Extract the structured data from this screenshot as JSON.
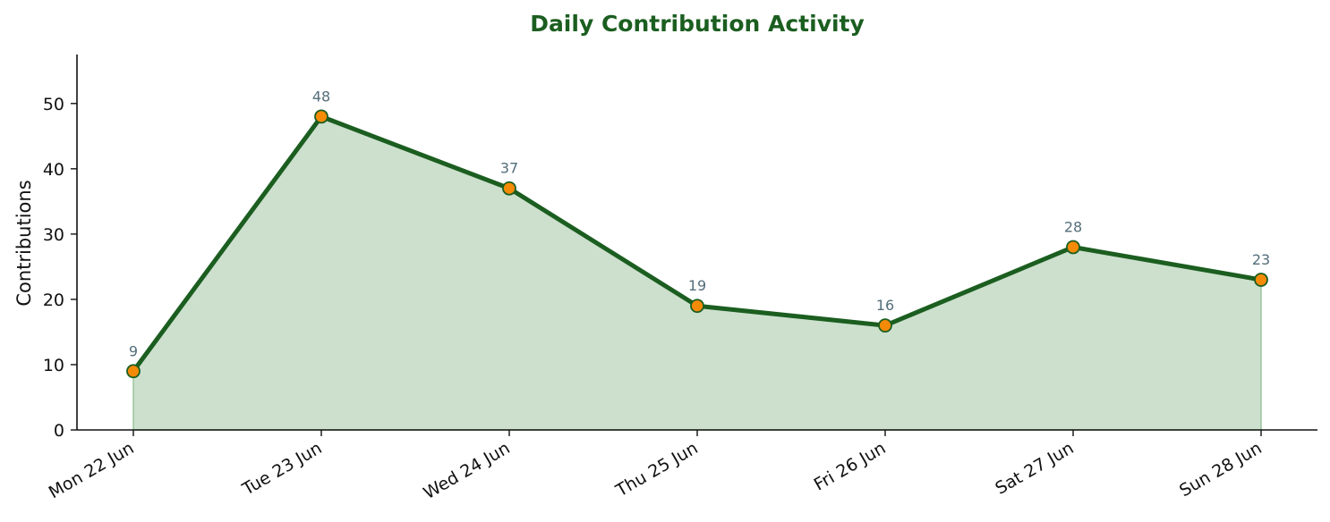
{
  "chart_data": {
    "type": "area",
    "title": "Daily Contribution Activity",
    "xlabel": "",
    "ylabel": "Contributions",
    "categories": [
      "Mon 22 Jun",
      "Tue 23 Jun",
      "Wed 24 Jun",
      "Thu 25 Jun",
      "Fri 26 Jun",
      "Sat 27 Jun",
      "Sun 28 Jun"
    ],
    "values": [
      9,
      48,
      37,
      19,
      16,
      28,
      23
    ],
    "data_labels": [
      "9",
      "48",
      "37",
      "19",
      "16",
      "28",
      "23"
    ],
    "ylim": [
      0,
      57.5
    ],
    "yticks": [
      0,
      10,
      20,
      30,
      40,
      50
    ],
    "ytick_labels": [
      "0",
      "10",
      "20",
      "30",
      "40",
      "50"
    ],
    "grid": false,
    "legend": "none"
  },
  "colors": {
    "title": "#1b5e20",
    "line": "#1b5e20",
    "area_fill": "#cce0cd",
    "area_edge": "#9cc69e",
    "marker_fill": "#f58a07",
    "marker_edge": "#1b5e20",
    "data_label": "#546e7a",
    "axis": "#111111"
  }
}
